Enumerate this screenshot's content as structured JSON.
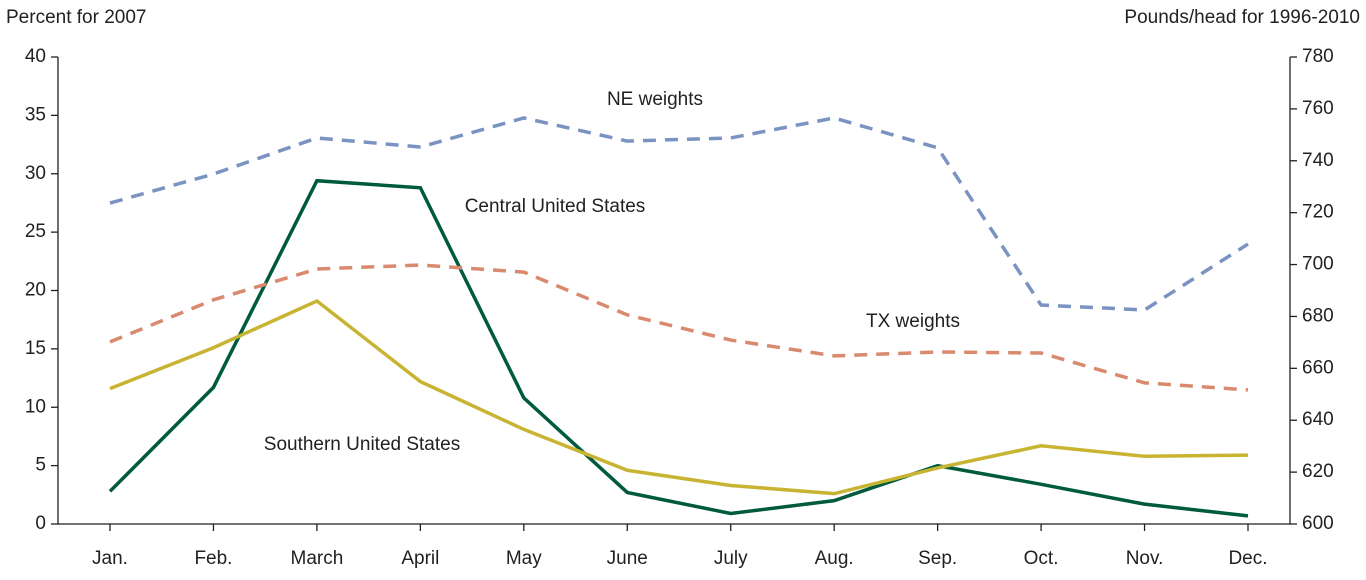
{
  "chart_data": {
    "type": "line",
    "y_label": "Percent for 2007",
    "y2_label": "Pounds/head for 1996-2010",
    "categories": [
      "Jan.",
      "Feb.",
      "March",
      "April",
      "May",
      "June",
      "July",
      "Aug.",
      "Sep.",
      "Oct.",
      "Nov.",
      "Dec."
    ],
    "series": [
      {
        "name": "Central United States",
        "color": "#005a3c",
        "linestyle": "solid",
        "values": [
          2.8,
          11.7,
          29.4,
          28.8,
          10.8,
          2.7,
          0.9,
          2.0,
          5.0,
          3.4,
          1.7,
          0.7
        ]
      },
      {
        "name": "Southern United States",
        "color": "#c8b432",
        "linestyle": "solid",
        "values": [
          11.6,
          15.1,
          19.1,
          12.2,
          8.1,
          4.6,
          3.3,
          2.6,
          4.8,
          6.7,
          5.8,
          5.9
        ]
      },
      {
        "name": "NE weights",
        "color": "#7b93c2",
        "linestyle": "dashed",
        "axis": "y2",
        "values": [
          723.7,
          734.9,
          748.8,
          745.3,
          756.5,
          747.6,
          748.8,
          756.5,
          745.0,
          684.4,
          682.5,
          707.9
        ]
      },
      {
        "name": "TX weights",
        "color": "#d98a6e",
        "linestyle": "dashed",
        "axis": "y2",
        "values": [
          670.2,
          686.4,
          698.3,
          699.8,
          697.1,
          680.6,
          670.9,
          664.8,
          666.3,
          665.9,
          654.4,
          651.7
        ]
      }
    ],
    "ylim": [
      0,
      40
    ],
    "yticks": [
      0,
      5,
      10,
      15,
      20,
      25,
      30,
      35,
      40
    ],
    "y2lim": [
      600,
      780
    ],
    "y2ticks": [
      600,
      620,
      640,
      660,
      680,
      700,
      720,
      740,
      760,
      780
    ]
  }
}
